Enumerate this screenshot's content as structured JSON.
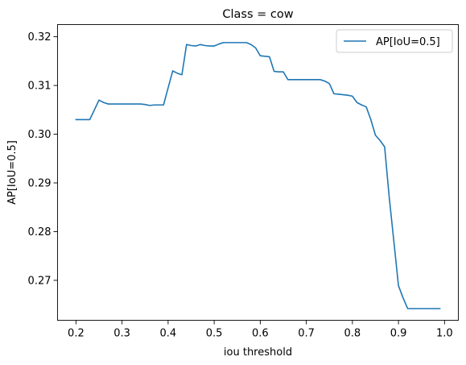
{
  "chart_data": {
    "type": "line",
    "title": "Class = cow",
    "xlabel": "iou threshold",
    "ylabel": "AP[IoU=0.5]",
    "xlim": [
      0.16,
      1.03
    ],
    "ylim": [
      0.2618,
      0.3225
    ],
    "xticks": [
      0.2,
      0.3,
      0.4,
      0.5,
      0.6,
      0.7,
      0.8,
      0.9,
      1.0
    ],
    "xtick_labels": [
      "0.2",
      "0.3",
      "0.4",
      "0.5",
      "0.6",
      "0.7",
      "0.8",
      "0.9",
      "1.0"
    ],
    "yticks": [
      0.27,
      0.28,
      0.29,
      0.3,
      0.31,
      0.32
    ],
    "ytick_labels": [
      "0.27",
      "0.28",
      "0.29",
      "0.30",
      "0.31",
      "0.32"
    ],
    "grid": false,
    "legend": "top-right",
    "color": "#1f77b4",
    "series": [
      {
        "name": "AP[IoU=0.5]",
        "x": [
          0.2,
          0.21,
          0.22,
          0.23,
          0.24,
          0.25,
          0.26,
          0.27,
          0.28,
          0.29,
          0.3,
          0.31,
          0.32,
          0.33,
          0.34,
          0.35,
          0.36,
          0.37,
          0.38,
          0.39,
          0.4,
          0.41,
          0.42,
          0.43,
          0.44,
          0.45,
          0.46,
          0.47,
          0.48,
          0.49,
          0.5,
          0.51,
          0.52,
          0.53,
          0.54,
          0.55,
          0.56,
          0.57,
          0.58,
          0.59,
          0.6,
          0.61,
          0.62,
          0.63,
          0.64,
          0.65,
          0.66,
          0.67,
          0.68,
          0.69,
          0.7,
          0.71,
          0.72,
          0.73,
          0.74,
          0.75,
          0.76,
          0.77,
          0.78,
          0.79,
          0.8,
          0.81,
          0.82,
          0.83,
          0.84,
          0.85,
          0.86,
          0.87,
          0.88,
          0.89,
          0.9,
          0.91,
          0.92,
          0.93,
          0.94,
          0.95,
          0.96,
          0.97,
          0.98,
          0.99
        ],
        "values": [
          0.303,
          0.303,
          0.303,
          0.303,
          0.305,
          0.307,
          0.3065,
          0.3062,
          0.3062,
          0.3062,
          0.3062,
          0.3062,
          0.3062,
          0.3062,
          0.3062,
          0.3061,
          0.3059,
          0.306,
          0.306,
          0.306,
          0.3095,
          0.313,
          0.3125,
          0.3122,
          0.3184,
          0.3182,
          0.3181,
          0.3184,
          0.3182,
          0.3181,
          0.3181,
          0.3185,
          0.3188,
          0.3188,
          0.3188,
          0.3188,
          0.3188,
          0.3188,
          0.3184,
          0.3177,
          0.3161,
          0.316,
          0.3159,
          0.3129,
          0.3128,
          0.3128,
          0.3112,
          0.3112,
          0.3112,
          0.3112,
          0.3112,
          0.3112,
          0.3112,
          0.3112,
          0.3109,
          0.3104,
          0.3083,
          0.3082,
          0.3081,
          0.308,
          0.3078,
          0.3065,
          0.306,
          0.3056,
          0.303,
          0.2998,
          0.2987,
          0.2974,
          0.287,
          0.278,
          0.2689,
          0.2664,
          0.2642,
          0.2642,
          0.2642,
          0.2642,
          0.2642,
          0.2642,
          0.2642,
          0.2642
        ]
      }
    ]
  }
}
